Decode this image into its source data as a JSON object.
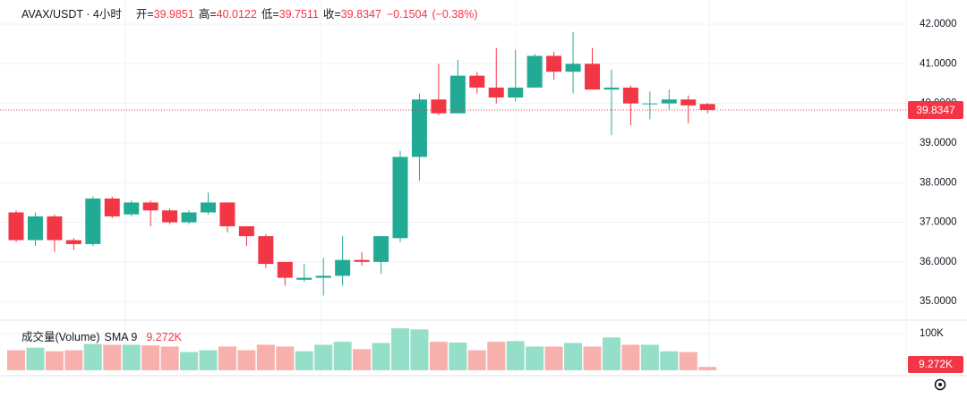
{
  "chart_data": [
    {
      "type": "candlestick",
      "title": "AVAX/USDT · 4小时",
      "ohlc_labels": [
        "开=",
        "高=",
        "低=",
        "收="
      ],
      "open": [
        37.25,
        36.55,
        37.15,
        36.55,
        36.45,
        37.6,
        37.2,
        37.5,
        37.3,
        37.0,
        37.25,
        37.5,
        36.9,
        36.65,
        36.0,
        35.55,
        35.6,
        35.65,
        36.05,
        36.0,
        36.6,
        38.65,
        40.1,
        39.75,
        40.7,
        40.4,
        40.15,
        40.4,
        41.2,
        40.8,
        41.0,
        40.35,
        40.4,
        39.98,
        40.0,
        40.1,
        39.9851
      ],
      "high": [
        37.3,
        37.25,
        37.2,
        36.6,
        37.65,
        37.65,
        37.55,
        37.55,
        37.35,
        37.3,
        37.75,
        37.5,
        36.9,
        36.7,
        36.0,
        35.95,
        36.1,
        36.65,
        36.25,
        36.65,
        38.8,
        40.25,
        41.0,
        41.1,
        40.8,
        41.4,
        41.35,
        41.25,
        41.3,
        41.8,
        41.4,
        40.85,
        40.45,
        40.3,
        40.35,
        40.2,
        40.0122
      ],
      "low": [
        36.5,
        36.4,
        36.25,
        36.3,
        36.4,
        37.1,
        37.15,
        36.9,
        36.95,
        36.95,
        37.2,
        36.75,
        36.4,
        35.85,
        35.4,
        35.5,
        35.15,
        35.4,
        35.9,
        35.7,
        36.5,
        38.05,
        39.7,
        39.75,
        40.25,
        40.0,
        40.05,
        40.4,
        40.6,
        40.25,
        40.35,
        39.2,
        39.45,
        39.6,
        39.85,
        39.5,
        39.7511
      ],
      "close": [
        36.55,
        37.15,
        36.55,
        36.45,
        37.6,
        37.15,
        37.5,
        37.3,
        37.0,
        37.25,
        37.5,
        36.9,
        36.65,
        35.95,
        35.6,
        35.6,
        35.65,
        36.05,
        36.0,
        36.65,
        38.65,
        40.1,
        39.75,
        40.7,
        40.4,
        40.15,
        40.4,
        41.2,
        40.8,
        41.0,
        40.35,
        40.4,
        40.0,
        40.0,
        40.1,
        39.95,
        39.8347
      ],
      "change": {
        "value": -0.1504,
        "label": "−0.1504"
      },
      "change_percent": {
        "value": -0.38,
        "label": "(−0.38%)"
      },
      "ylim": [
        34.53,
        42.61
      ],
      "yticks": [
        {
          "value": 35,
          "label": "35.0000"
        },
        {
          "value": 36,
          "label": "36.0000"
        },
        {
          "value": 37,
          "label": "37.0000"
        },
        {
          "value": 38,
          "label": "38.0000"
        },
        {
          "value": 39,
          "label": "39.0000"
        },
        {
          "value": 40,
          "label": "40.0000"
        },
        {
          "value": 41,
          "label": "41.0000"
        },
        {
          "value": 42,
          "label": "42.0000"
        }
      ],
      "up_color": "#22ab94",
      "down_color": "#f23645",
      "grid": true,
      "last_price_line": true
    },
    {
      "type": "bar",
      "title": "成交量(Volume)",
      "indicator": "SMA 9",
      "values": [
        55000,
        62000,
        52000,
        55000,
        72000,
        70000,
        70000,
        68000,
        65000,
        50000,
        55000,
        65000,
        55000,
        70000,
        65000,
        52000,
        70000,
        78000,
        58000,
        75000,
        115000,
        112000,
        78000,
        76000,
        55000,
        78000,
        80000,
        65000,
        65000,
        75000,
        65000,
        90000,
        70000,
        70000,
        52000,
        50000,
        9272
      ],
      "value_labels": [
        null,
        null,
        null,
        null,
        null,
        null,
        null,
        null,
        null,
        null,
        null,
        null,
        null,
        null,
        null,
        null,
        null,
        null,
        null,
        null,
        null,
        null,
        null,
        null,
        null,
        null,
        null,
        null,
        null,
        null,
        null,
        null,
        null,
        null,
        null,
        null,
        "9.272K"
      ],
      "ylim": [
        0,
        125000
      ],
      "yticks": [
        {
          "value": 100000,
          "label": "100K"
        }
      ],
      "up_color": "#95dfc9",
      "down_color": "#f8b0ac",
      "grid": true
    }
  ]
}
